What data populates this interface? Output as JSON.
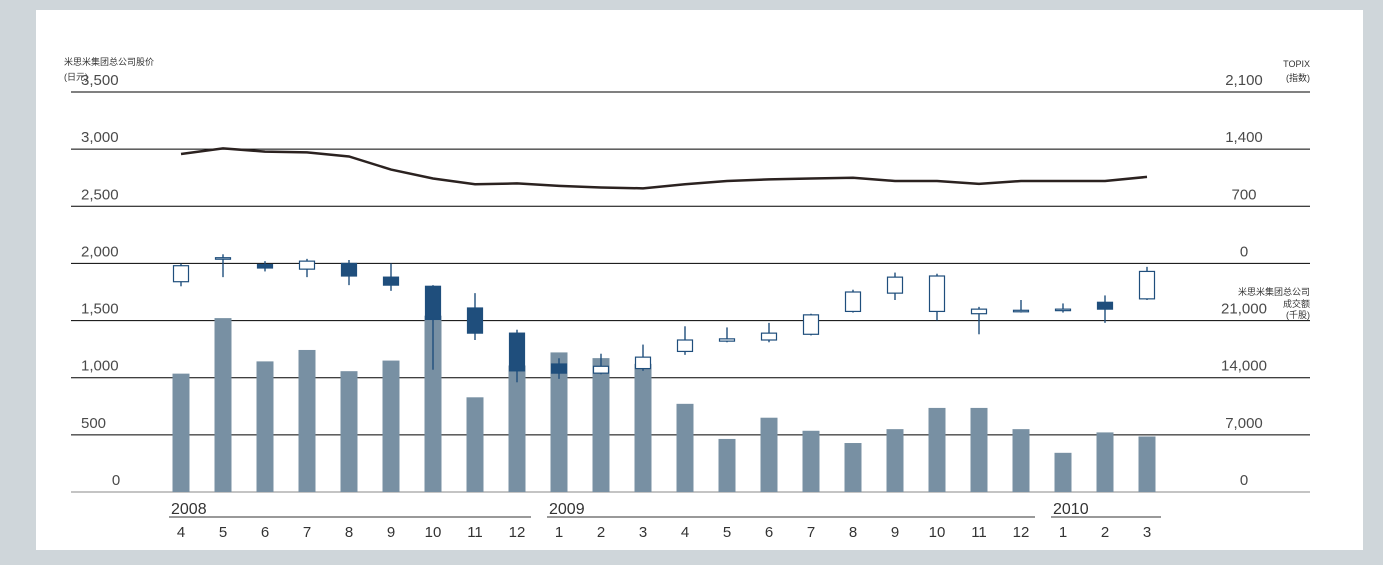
{
  "chart_data": {
    "type": "candlestick+bar+line",
    "left_axis": {
      "title": "米思米集团总公司股价",
      "unit": "(日元)",
      "ticks": [
        "3,500",
        "3,000",
        "2,500",
        "2,000",
        "1,500",
        "1,000",
        "500",
        "0"
      ],
      "ylim": [
        0,
        3500
      ]
    },
    "right_axis_topix": {
      "title": "TOPIX",
      "unit": "(指数)",
      "ticks": [
        "2,100",
        "1,400",
        "700",
        "0"
      ],
      "ylim": [
        0,
        2100
      ]
    },
    "right_axis_volume": {
      "title": "米思米集团总公司",
      "title2": "成交额",
      "unit": "(千股)",
      "ticks": [
        "21,000",
        "14,000",
        "7,000",
        "0"
      ],
      "ylim": [
        0,
        28000
      ]
    },
    "years": [
      {
        "label": "2008",
        "start": 0,
        "end": 8
      },
      {
        "label": "2009",
        "start": 9,
        "end": 20
      },
      {
        "label": "2010",
        "start": 21,
        "end": 23
      }
    ],
    "months": [
      "4",
      "5",
      "6",
      "7",
      "8",
      "9",
      "10",
      "11",
      "12",
      "1",
      "2",
      "3",
      "4",
      "5",
      "6",
      "7",
      "8",
      "9",
      "10",
      "11",
      "12",
      "1",
      "2",
      "3"
    ],
    "candles": [
      {
        "open": 1840,
        "close": 1980,
        "high": 2000,
        "low": 1800
      },
      {
        "open": 2040,
        "close": 2050,
        "high": 2080,
        "low": 1880
      },
      {
        "open": 1990,
        "close": 1960,
        "high": 2020,
        "low": 1930
      },
      {
        "open": 1950,
        "close": 2020,
        "high": 2040,
        "low": 1880
      },
      {
        "open": 2000,
        "close": 1890,
        "high": 2030,
        "low": 1810
      },
      {
        "open": 1880,
        "close": 1810,
        "high": 2000,
        "low": 1760
      },
      {
        "open": 1800,
        "close": 1510,
        "high": 1810,
        "low": 1070
      },
      {
        "open": 1610,
        "close": 1390,
        "high": 1740,
        "low": 1330
      },
      {
        "open": 1390,
        "close": 1060,
        "high": 1420,
        "low": 960
      },
      {
        "open": 1120,
        "close": 1040,
        "high": 1170,
        "low": 990
      },
      {
        "open": 1040,
        "close": 1100,
        "high": 1210,
        "low": 1030
      },
      {
        "open": 1080,
        "close": 1180,
        "high": 1290,
        "low": 1060
      },
      {
        "open": 1230,
        "close": 1330,
        "high": 1450,
        "low": 1200
      },
      {
        "open": 1320,
        "close": 1340,
        "high": 1440,
        "low": 1310
      },
      {
        "open": 1330,
        "close": 1390,
        "high": 1480,
        "low": 1310
      },
      {
        "open": 1380,
        "close": 1550,
        "high": 1560,
        "low": 1370
      },
      {
        "open": 1580,
        "close": 1750,
        "high": 1770,
        "low": 1570
      },
      {
        "open": 1740,
        "close": 1880,
        "high": 1920,
        "low": 1680
      },
      {
        "open": 1580,
        "close": 1890,
        "high": 1910,
        "low": 1500
      },
      {
        "open": 1560,
        "close": 1600,
        "high": 1620,
        "low": 1380
      },
      {
        "open": 1580,
        "close": 1590,
        "high": 1680,
        "low": 1570
      },
      {
        "open": 1590,
        "close": 1600,
        "high": 1650,
        "low": 1570
      },
      {
        "open": 1660,
        "close": 1600,
        "high": 1720,
        "low": 1480
      },
      {
        "open": 1690,
        "close": 1930,
        "high": 1970,
        "low": 1680
      }
    ],
    "volume": [
      14500,
      21300,
      16000,
      17400,
      14800,
      16100,
      21600,
      11600,
      15500,
      17100,
      16400,
      15700,
      10800,
      6500,
      9100,
      7500,
      6000,
      7700,
      10300,
      10300,
      7700,
      4800,
      7300,
      6800
    ],
    "topix": [
      1340,
      1410,
      1370,
      1360,
      1310,
      1150,
      1040,
      970,
      980,
      950,
      930,
      920,
      970,
      1010,
      1030,
      1040,
      1050,
      1010,
      1010,
      975,
      1010,
      1010,
      1010,
      1060
    ],
    "colors": {
      "candle_down": "#1f4e7c",
      "candle_up_fill": "#ffffff",
      "candle_up_stroke": "#1f4e7c",
      "volume_bar": "#7890a3",
      "topix_line": "#2b2220",
      "grid": "#000000",
      "background": "#ffffff",
      "frame": "#cfd6da"
    }
  }
}
